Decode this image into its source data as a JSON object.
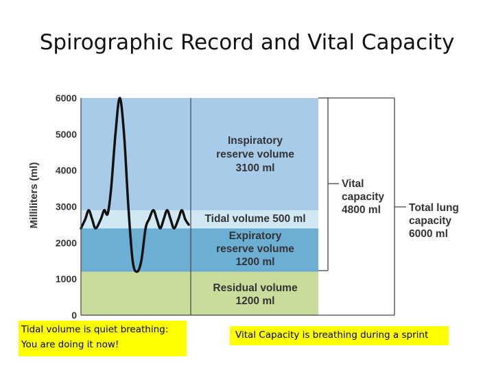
{
  "slide": {
    "title": "Spirographic Record and Vital Capacity"
  },
  "chart_data": {
    "type": "area",
    "ylabel": "Milliliters (ml)",
    "ylim": [
      0,
      6000
    ],
    "yticks": [
      0,
      1000,
      2000,
      3000,
      4000,
      5000,
      6000
    ],
    "bands": [
      {
        "name": "Residual volume",
        "from": 0,
        "to": 1200,
        "value": "1200 ml",
        "color": "#c9dc9b"
      },
      {
        "name": "Expiratory reserve volume",
        "from": 1200,
        "to": 2400,
        "value": "1200 ml",
        "color": "#6cafd4"
      },
      {
        "name": "Tidal volume",
        "from": 2400,
        "to": 2900,
        "value": "500 ml",
        "color": "#cfe8f4"
      },
      {
        "name": "Inspiratory reserve volume",
        "from": 2900,
        "to": 6000,
        "value": "3100 ml",
        "color": "#a7cbe9"
      }
    ],
    "band_labels": {
      "inspiratory": [
        "Inspiratory",
        "reserve volume",
        "3100 ml"
      ],
      "tidal": [
        "Tidal volume 500 ml"
      ],
      "expiratory": [
        "Expiratory",
        "reserve volume",
        "1200 ml"
      ],
      "residual": [
        "Residual volume",
        "1200 ml"
      ]
    },
    "brackets": {
      "vital_capacity": [
        "Vital",
        "capacity",
        "4800 ml"
      ],
      "total_lung_capacity": [
        "Total lung",
        "capacity",
        "6000 ml"
      ]
    },
    "trace": [
      [
        0,
        2400
      ],
      [
        5,
        2650
      ],
      [
        9,
        2900
      ],
      [
        13,
        2650
      ],
      [
        17,
        2400
      ],
      [
        23,
        2650
      ],
      [
        27,
        2900
      ],
      [
        31,
        2800
      ],
      [
        35,
        3500
      ],
      [
        40,
        5000
      ],
      [
        45,
        6000
      ],
      [
        50,
        5000
      ],
      [
        55,
        3000
      ],
      [
        60,
        1500
      ],
      [
        65,
        1200
      ],
      [
        70,
        1500
      ],
      [
        75,
        2400
      ],
      [
        79,
        2650
      ],
      [
        84,
        2900
      ],
      [
        88,
        2650
      ],
      [
        92,
        2400
      ],
      [
        96,
        2650
      ],
      [
        100,
        2900
      ],
      [
        104,
        2650
      ],
      [
        108,
        2400
      ],
      [
        113,
        2650
      ],
      [
        117,
        2900
      ],
      [
        121,
        2650
      ],
      [
        125,
        2500
      ]
    ]
  },
  "notes": {
    "left_lines": [
      "Tidal volume is quiet breathing:",
      "You are doing it now!"
    ],
    "right": "Vital Capacity is breathing during a sprint"
  }
}
